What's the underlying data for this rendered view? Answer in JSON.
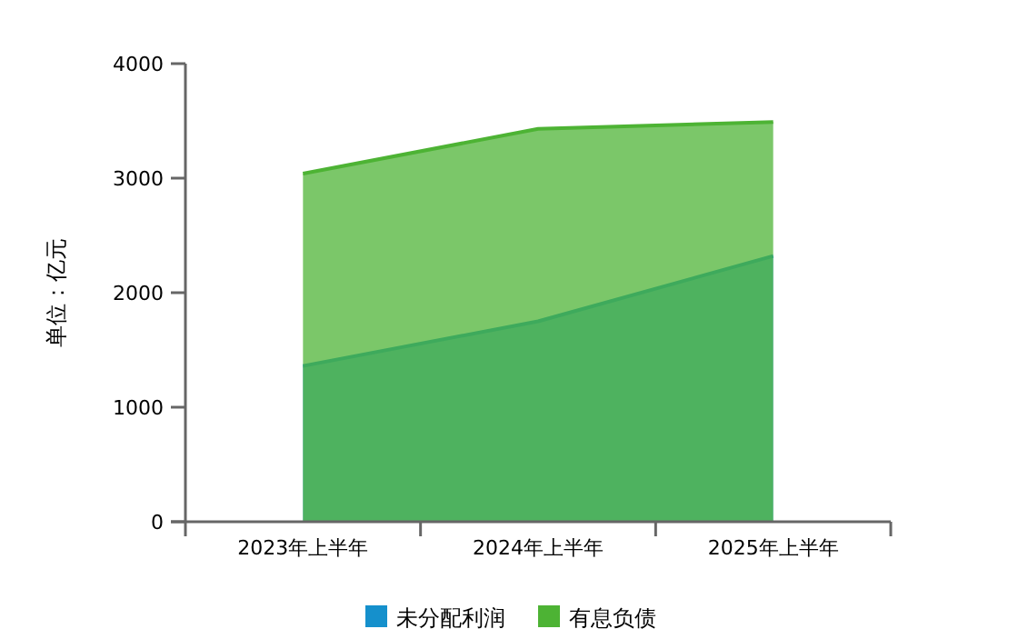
{
  "chart_data": {
    "type": "area",
    "ylabel": "单位：亿元",
    "categories": [
      "2023年上半年",
      "2024年上半年",
      "2025年上半年"
    ],
    "series": [
      {
        "name": "未分配利润",
        "color": "#1590cc",
        "values": [
          1360,
          1750,
          2320
        ]
      },
      {
        "name": "有息负债",
        "color": "#4db334",
        "values": [
          3040,
          3430,
          3490
        ]
      }
    ],
    "ylim": [
      0,
      4000
    ],
    "yticks": [
      0,
      1000,
      2000,
      3000,
      4000
    ],
    "grid": false,
    "legend": "bottom"
  }
}
